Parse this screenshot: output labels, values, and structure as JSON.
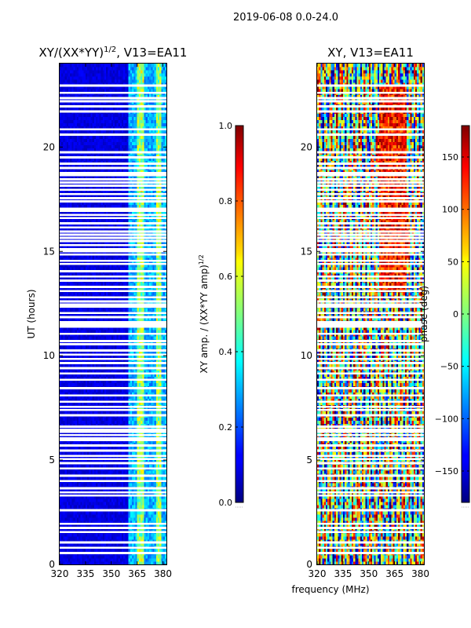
{
  "figure": {
    "suptitle": "2019-06-08 0.0-24.0",
    "xlabel_shared": "frequency (MHz)"
  },
  "chart_data": [
    {
      "type": "heatmap",
      "title_main": "XY/(XX*YY)",
      "title_sup": "1/2",
      "title_suffix": ", V13=EA11",
      "xlabel": "",
      "ylabel": "UT (hours)",
      "xlim": [
        320,
        382
      ],
      "ylim": [
        0,
        24
      ],
      "xticks": [
        320,
        335,
        350,
        365,
        380
      ],
      "yticks": [
        0,
        5,
        10,
        15,
        20
      ],
      "colormap": "jet",
      "colorbar": {
        "label_main": "XY amp. / (XX*YY amp)",
        "label_sup": "1/2",
        "range": [
          0.0,
          1.0
        ],
        "ticks": [
          "0.0",
          "0.2",
          "0.4",
          "0.6",
          "0.8",
          "1.0"
        ]
      },
      "description": "normalized amplitude: low (~0.05) below 360 MHz, 0.2-0.6 above 360 MHz, white gaps = flagged times"
    },
    {
      "type": "heatmap",
      "title_main": "XY, V13=EA11",
      "xlabel": "frequency (MHz)",
      "ylabel": "",
      "xlim": [
        320,
        382
      ],
      "ylim": [
        0,
        24
      ],
      "xticks": [
        320,
        335,
        350,
        365,
        380
      ],
      "yticks": [
        0,
        5,
        10,
        15,
        20
      ],
      "colormap": "jet",
      "colorbar": {
        "label_main": "phase (deg)",
        "range": [
          -180,
          180
        ],
        "ticks": [
          "−150",
          "−100",
          "−50",
          "0",
          "50",
          "100",
          "150"
        ]
      },
      "description": "phase in degrees, -180..180"
    }
  ],
  "flagged_time_gaps_hours": [
    0.55,
    0.8,
    1.05,
    1.55,
    1.75,
    1.95,
    2.6,
    3.3,
    3.45,
    3.65,
    4.0,
    4.25,
    4.6,
    4.85,
    5.05,
    5.2,
    5.45,
    5.7,
    5.95,
    6.05,
    6.2,
    6.35,
    6.45,
    6.6,
    7.15,
    7.4,
    7.55,
    7.8,
    8.1,
    8.45,
    8.85,
    9.15,
    9.4,
    9.65,
    9.85,
    10.05,
    10.25,
    10.55,
    10.7,
    11.05,
    11.4,
    11.5,
    11.6,
    11.85,
    12.05,
    12.35,
    12.45,
    12.6,
    12.8,
    13.1,
    13.3,
    13.6,
    13.8,
    14.05,
    14.4,
    14.55,
    14.85,
    15.0,
    15.1,
    15.3,
    15.5,
    15.65,
    15.8,
    15.95,
    16.15,
    16.35,
    16.6,
    16.75,
    16.95,
    17.05,
    17.4,
    17.55,
    17.75,
    17.95,
    18.15,
    18.3,
    18.45,
    18.65,
    18.75,
    19.0,
    19.2,
    19.5,
    19.75,
    20.6,
    20.85,
    21.7,
    21.95,
    22.2,
    22.35,
    22.6,
    22.95
  ]
}
